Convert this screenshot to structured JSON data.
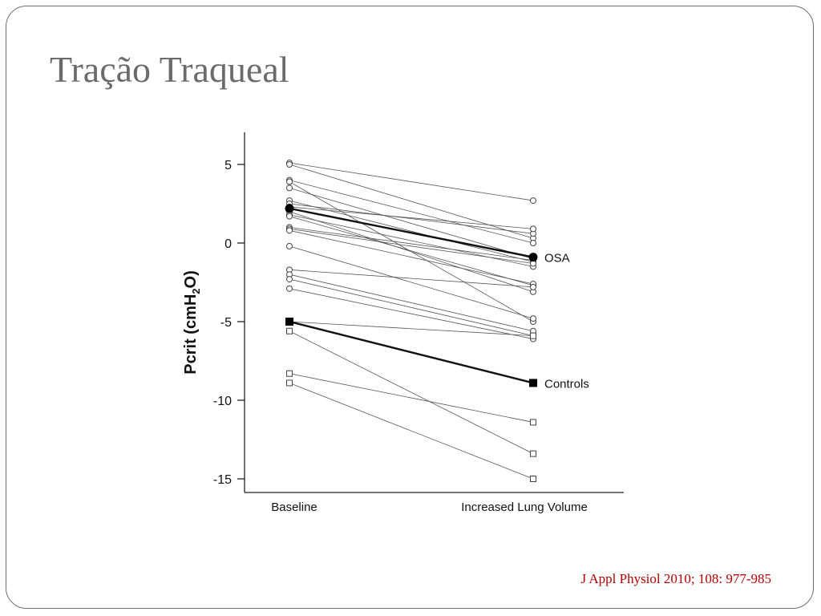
{
  "slide": {
    "title": "Tração Traqueal",
    "citation": "J Appl Physiol 2010; 108: 977-985"
  },
  "chart_data": {
    "type": "line",
    "categories": [
      "Baseline",
      "Increased Lung Volume"
    ],
    "ylabel": {
      "main": "Pcrit (cmH",
      "sub": "2",
      "tail": "O)"
    },
    "ylim": [
      -15,
      5
    ],
    "yticks": [
      5,
      0,
      -5,
      -10,
      -15
    ],
    "grid": false,
    "series": [
      {
        "name": "OSA",
        "marker": "circle",
        "mean": [
          2.2,
          -0.9
        ],
        "individuals": [
          [
            5.1,
            2.7
          ],
          [
            5.0,
            0.3
          ],
          [
            4.0,
            0.0
          ],
          [
            3.9,
            -5.0
          ],
          [
            3.5,
            -1.0
          ],
          [
            2.7,
            -1.2
          ],
          [
            2.5,
            0.6
          ],
          [
            2.3,
            0.9
          ],
          [
            2.0,
            -3.1
          ],
          [
            1.8,
            -1.5
          ],
          [
            1.7,
            -2.7
          ],
          [
            1.0,
            -1.1
          ],
          [
            0.9,
            -1.3
          ],
          [
            0.8,
            -2.6
          ],
          [
            -0.2,
            -4.8
          ],
          [
            -1.7,
            -2.8
          ],
          [
            -2.0,
            -5.6
          ],
          [
            -2.3,
            -5.9
          ],
          [
            -2.9,
            -6.1
          ]
        ]
      },
      {
        "name": "Controls",
        "marker": "square",
        "mean": [
          -5.0,
          -8.9
        ],
        "individuals": [
          [
            -5.0,
            -5.9
          ],
          [
            -5.6,
            -13.4
          ],
          [
            -8.3,
            -11.4
          ],
          [
            -8.9,
            -15.0
          ]
        ]
      }
    ]
  }
}
